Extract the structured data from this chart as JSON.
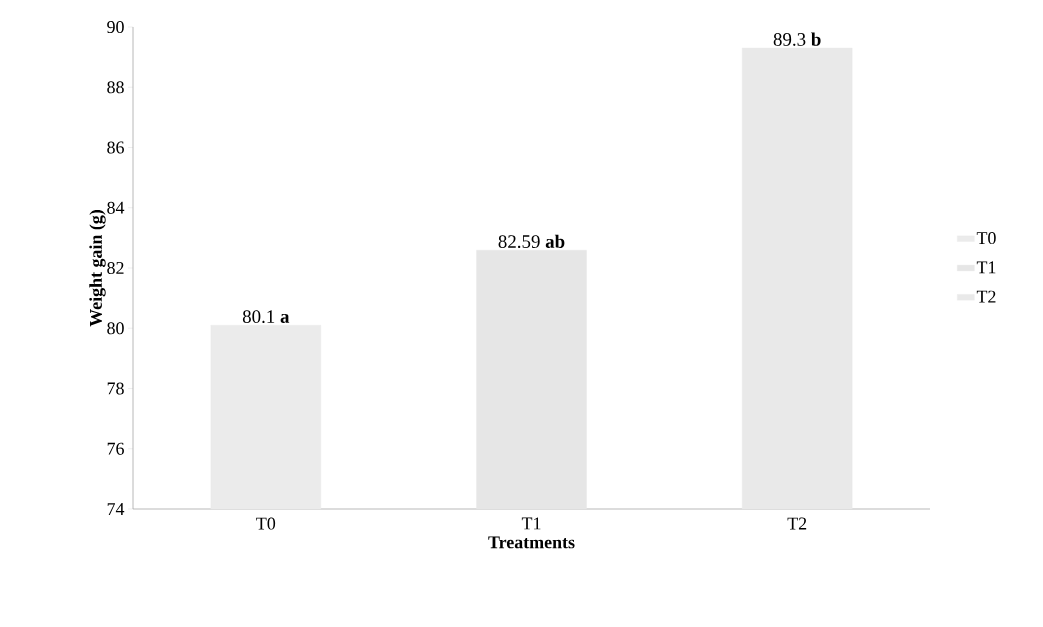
{
  "chart_data": {
    "type": "bar",
    "xlabel": "Treatments",
    "ylabel": "Weight gain (g)",
    "categories": [
      "T0",
      "T1",
      "T2"
    ],
    "series": [
      {
        "name": "T0",
        "color": "#ebebeb",
        "values": [
          80.1,
          null,
          null
        ],
        "value_labels": [
          "80.1 **a**",
          null,
          null
        ]
      },
      {
        "name": "T1",
        "color": "#e6e6e6",
        "values": [
          null,
          82.59,
          null
        ],
        "value_labels": [
          null,
          "82.59 **ab**",
          null
        ]
      },
      {
        "name": "T2",
        "color": "#e9e9e9",
        "values": [
          null,
          null,
          89.3
        ],
        "value_labels": [
          null,
          null,
          "89.3 **b**"
        ]
      }
    ],
    "ylim": [
      74,
      90
    ],
    "yticks": [
      74,
      76,
      78,
      80,
      82,
      84,
      86,
      88,
      90
    ],
    "legend": "right"
  }
}
